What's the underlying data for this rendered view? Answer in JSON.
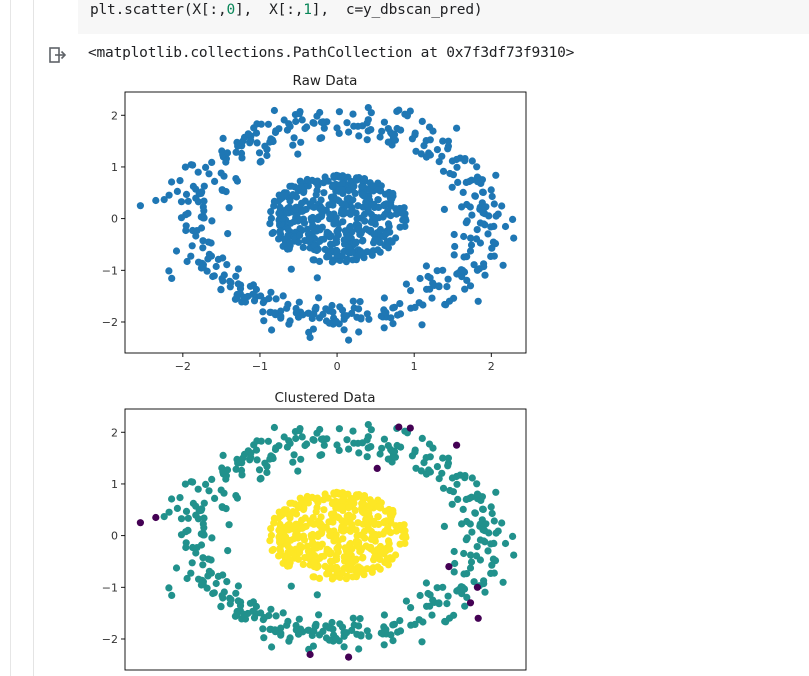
{
  "notebook": {
    "code_line": {
      "prefix": "plt.scatter(X[:,",
      "n1": "0",
      "mid": "],  X[:,",
      "n2": "1",
      "suffix": "],  c=y_dbscan_pred)"
    },
    "output_text": "<matplotlib.collections.PathCollection at 0x7f3df73f9310>",
    "output_icon": "output-arrow-icon"
  },
  "colors": {
    "raw": "#1f77b4",
    "viridis_outlier": "#440154",
    "viridis_ring": "#21918c",
    "viridis_core": "#fde725"
  },
  "chart_data": [
    {
      "type": "scatter",
      "title": "Raw Data",
      "xlim": [
        -2.75,
        2.45
      ],
      "ylim": [
        -2.6,
        2.45
      ],
      "xticks": [
        -2,
        -1,
        0,
        1,
        2
      ],
      "xtick_labels": [
        "−2",
        "−1",
        "0",
        "1",
        "2"
      ],
      "yticks": [
        2,
        1,
        0,
        -1,
        -2
      ],
      "ytick_labels": [
        "2",
        "1",
        "0",
        "−1",
        "−2"
      ],
      "grid": false,
      "color": "#1f77b4",
      "outer_ring": {
        "radius_mean": 1.9,
        "radius_sd": 0.18,
        "count": 420
      },
      "inner_blob": {
        "radius_max": 0.9,
        "count": 420
      },
      "extra_points": [
        [
          -2.55,
          0.25
        ],
        [
          -2.35,
          0.35
        ],
        [
          -0.35,
          -2.3
        ],
        [
          0.15,
          -2.35
        ],
        [
          0.8,
          2.1
        ],
        [
          0.95,
          2.08
        ],
        [
          1.55,
          1.75
        ],
        [
          1.82,
          -1.0
        ],
        [
          1.73,
          -1.3
        ],
        [
          1.83,
          -1.6
        ]
      ]
    },
    {
      "type": "scatter",
      "title": "Clustered Data",
      "xlim": [
        -2.75,
        2.45
      ],
      "ylim": [
        -2.6,
        2.45
      ],
      "yticks": [
        2,
        1,
        0,
        -1,
        -2
      ],
      "ytick_labels": [
        "2",
        "1",
        "0",
        "−1",
        "−2"
      ],
      "grid": false,
      "clusters": [
        {
          "label": -1,
          "color": "#440154",
          "points": [
            [
              -2.55,
              0.25
            ],
            [
              -2.35,
              0.35
            ],
            [
              -0.35,
              -2.3
            ],
            [
              0.15,
              -2.35
            ],
            [
              0.8,
              2.1
            ],
            [
              0.95,
              2.08
            ],
            [
              1.55,
              1.75
            ],
            [
              0.52,
              1.3
            ],
            [
              1.82,
              -1.0
            ],
            [
              1.73,
              -1.3
            ],
            [
              1.83,
              -1.6
            ],
            [
              1.45,
              -0.6
            ]
          ]
        },
        {
          "label": 0,
          "color": "#21918c",
          "shape": "outer-ring"
        },
        {
          "label": 1,
          "color": "#fde725",
          "shape": "inner-blob"
        }
      ]
    }
  ]
}
